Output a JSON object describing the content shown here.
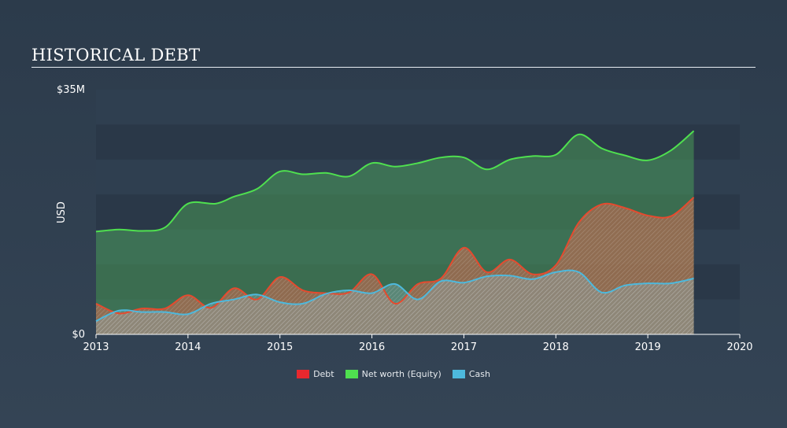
{
  "header": {
    "title": "HISTORICAL DEBT"
  },
  "chart_data": {
    "type": "area",
    "title": "HISTORICAL DEBT",
    "ylabel": "USD",
    "xlabel": "",
    "ylim": [
      0,
      35
    ],
    "y_unit": "M",
    "y_ticks": [
      {
        "value": 0,
        "label": "$0"
      },
      {
        "value": 35,
        "label": "$35M"
      }
    ],
    "x_ticks": [
      {
        "value": 2013,
        "label": "2013"
      },
      {
        "value": 2014,
        "label": "2014"
      },
      {
        "value": 2015,
        "label": "2015"
      },
      {
        "value": 2016,
        "label": "2016"
      },
      {
        "value": 2017,
        "label": "2017"
      },
      {
        "value": 2018,
        "label": "2018"
      },
      {
        "value": 2019,
        "label": "2019"
      },
      {
        "value": 2020,
        "label": "2020"
      }
    ],
    "xlim": [
      2013,
      2020
    ],
    "series": [
      {
        "name": "Net worth (Equity)",
        "color": "#4fe04f",
        "points": [
          [
            2013.0,
            14.7
          ],
          [
            2013.25,
            15.0
          ],
          [
            2013.5,
            14.8
          ],
          [
            2013.75,
            15.3
          ],
          [
            2014.0,
            18.7
          ],
          [
            2014.3,
            18.7
          ],
          [
            2014.5,
            19.7
          ],
          [
            2014.75,
            20.8
          ],
          [
            2015.0,
            23.3
          ],
          [
            2015.25,
            22.9
          ],
          [
            2015.5,
            23.1
          ],
          [
            2015.75,
            22.6
          ],
          [
            2016.0,
            24.5
          ],
          [
            2016.25,
            24.0
          ],
          [
            2016.5,
            24.5
          ],
          [
            2016.75,
            25.3
          ],
          [
            2017.0,
            25.3
          ],
          [
            2017.25,
            23.6
          ],
          [
            2017.5,
            25.0
          ],
          [
            2017.75,
            25.5
          ],
          [
            2018.0,
            25.7
          ],
          [
            2018.25,
            28.6
          ],
          [
            2018.5,
            26.6
          ],
          [
            2018.75,
            25.6
          ],
          [
            2019.0,
            24.9
          ],
          [
            2019.25,
            26.3
          ],
          [
            2019.5,
            29.1
          ]
        ]
      },
      {
        "name": "Debt",
        "color": "#e64a2e",
        "points": [
          [
            2013.0,
            4.4
          ],
          [
            2013.25,
            3.0
          ],
          [
            2013.5,
            3.7
          ],
          [
            2013.75,
            3.7
          ],
          [
            2014.0,
            5.6
          ],
          [
            2014.25,
            3.8
          ],
          [
            2014.5,
            6.6
          ],
          [
            2014.75,
            5.0
          ],
          [
            2015.0,
            8.2
          ],
          [
            2015.25,
            6.3
          ],
          [
            2015.5,
            5.9
          ],
          [
            2015.75,
            6.0
          ],
          [
            2016.0,
            8.6
          ],
          [
            2016.25,
            4.4
          ],
          [
            2016.5,
            7.2
          ],
          [
            2016.75,
            8.0
          ],
          [
            2017.0,
            12.4
          ],
          [
            2017.25,
            8.9
          ],
          [
            2017.5,
            10.7
          ],
          [
            2017.75,
            8.6
          ],
          [
            2018.0,
            9.9
          ],
          [
            2018.25,
            16.0
          ],
          [
            2018.5,
            18.6
          ],
          [
            2018.75,
            18.1
          ],
          [
            2019.0,
            17.0
          ],
          [
            2019.25,
            16.9
          ],
          [
            2019.5,
            19.6
          ]
        ]
      },
      {
        "name": "Cash",
        "color": "#4db9dd",
        "points": [
          [
            2013.0,
            1.9
          ],
          [
            2013.25,
            3.4
          ],
          [
            2013.5,
            3.2
          ],
          [
            2013.75,
            3.2
          ],
          [
            2014.0,
            2.9
          ],
          [
            2014.25,
            4.4
          ],
          [
            2014.5,
            5.0
          ],
          [
            2014.75,
            5.7
          ],
          [
            2015.0,
            4.6
          ],
          [
            2015.25,
            4.4
          ],
          [
            2015.5,
            5.8
          ],
          [
            2015.75,
            6.3
          ],
          [
            2016.0,
            5.9
          ],
          [
            2016.25,
            7.2
          ],
          [
            2016.5,
            5.0
          ],
          [
            2016.75,
            7.6
          ],
          [
            2017.0,
            7.4
          ],
          [
            2017.25,
            8.3
          ],
          [
            2017.5,
            8.4
          ],
          [
            2017.75,
            7.9
          ],
          [
            2018.0,
            8.9
          ],
          [
            2018.25,
            8.9
          ],
          [
            2018.5,
            6.0
          ],
          [
            2018.75,
            7.0
          ],
          [
            2019.0,
            7.3
          ],
          [
            2019.25,
            7.3
          ],
          [
            2019.5,
            8.0
          ]
        ]
      }
    ],
    "legend": [
      "Debt",
      "Net worth (Equity)",
      "Cash"
    ],
    "legend_position": "bottom-center"
  }
}
